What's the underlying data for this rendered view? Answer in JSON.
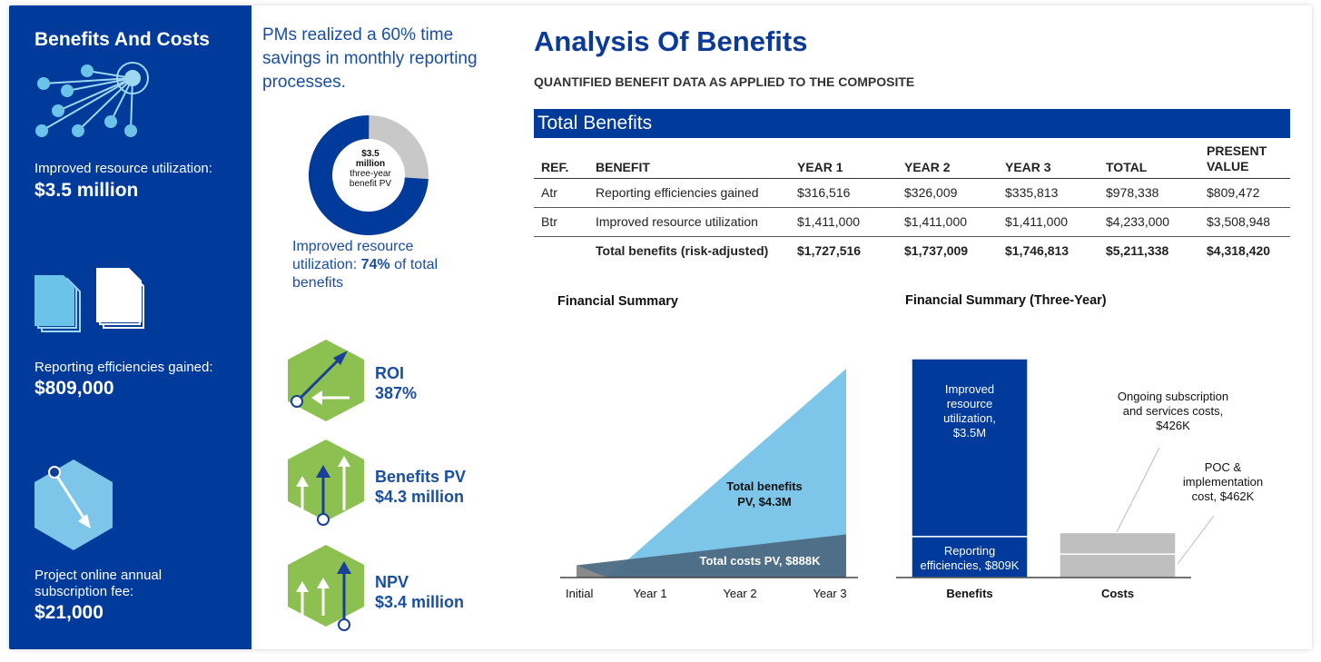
{
  "left_panel": {
    "title": "Benefits And Costs",
    "items": [
      {
        "label": "Improved resource utilization:",
        "value": "$3.5 million",
        "icon": "network-icon"
      },
      {
        "label": "Reporting efficiencies gained:",
        "value": "$809,000",
        "icon": "documents-icon"
      },
      {
        "label": "Project online annual subscription fee:",
        "value": "$21,000",
        "icon": "hexagon-arrow-icon"
      }
    ]
  },
  "middle": {
    "quote": "PMs realized a 60% time savings in monthly reporting processes.",
    "donut": {
      "line1": "$3.5",
      "line2": "million",
      "line3": "three-year",
      "line4": "benefit PV",
      "share_percent": 74,
      "color_main": "#003a9a",
      "color_rest": "#c8c8c8"
    },
    "utilization_prefix": "Improved resource utilization: ",
    "utilization_pct": "74%",
    "utilization_suffix": " of total benefits",
    "metrics": [
      {
        "label": "ROI",
        "value": "387%",
        "icon": "roi-hexagon-icon"
      },
      {
        "label": "Benefits PV",
        "value": "$4.3 million",
        "icon": "benefits-hexagon-icon"
      },
      {
        "label": "NPV",
        "value": "$3.4 million",
        "icon": "npv-hexagon-icon"
      }
    ]
  },
  "analysis": {
    "title": "Analysis Of Benefits",
    "subtitle": "QUANTIFIED BENEFIT DATA AS APPLIED TO THE COMPOSITE",
    "table_title": "Total Benefits",
    "columns": [
      "REF.",
      "BENEFIT",
      "YEAR 1",
      "YEAR 2",
      "YEAR 3",
      "TOTAL",
      "PRESENT VALUE"
    ],
    "rows": [
      [
        "Atr",
        "Reporting efficiencies gained",
        "$316,516",
        "$326,009",
        "$335,813",
        "$978,338",
        "$809,472"
      ],
      [
        "Btr",
        "Improved resource utilization",
        "$1,411,000",
        "$1,411,000",
        "$1,411,000",
        "$4,233,000",
        "$3,508,948"
      ],
      [
        "",
        "Total benefits (risk-adjusted)",
        "$1,727,516",
        "$1,737,009",
        "$1,746,813",
        "$5,211,338",
        "$4,318,420"
      ]
    ]
  },
  "chart_data": [
    {
      "type": "area",
      "title": "Financial Summary",
      "categories": [
        "Initial",
        "Year 1",
        "Year 2",
        "Year 3"
      ],
      "series": [
        {
          "name": "Total benefits PV, $4.3M",
          "values": [
            0,
            1.6,
            3.0,
            4.3
          ],
          "color": "#7dc6ea"
        },
        {
          "name": "Total costs PV, $888K",
          "values": [
            0.46,
            0.6,
            0.75,
            0.888
          ],
          "color": "#4c6a82"
        }
      ],
      "labels": {
        "benefits": "Total benefits PV, $4.3M",
        "costs": "Total costs PV, $888K"
      }
    },
    {
      "type": "bar",
      "title": "Financial Summary (Three-Year)",
      "categories": [
        "Benefits",
        "Costs"
      ],
      "benefits_stack": [
        {
          "name": "Reporting efficiencies, $809K",
          "value": 809,
          "color": "#003a9a"
        },
        {
          "name": "Improved resource utilization, $3.5M",
          "value": 3509,
          "color": "#003a9a"
        }
      ],
      "costs_stack": [
        {
          "name": "POC & implementation cost, $462K",
          "value": 462,
          "color": "#bfbfbf"
        },
        {
          "name": "Ongoing subscription and services costs, $426K",
          "value": 426,
          "color": "#bfbfbf"
        }
      ],
      "labels": {
        "reporting": "Reporting efficiencies, $809K",
        "improved": "Improved resource utilization, $3.5M",
        "ongoing": "Ongoing subscription and services costs, $426K",
        "poc": "POC & implementation cost, $462K"
      }
    }
  ]
}
